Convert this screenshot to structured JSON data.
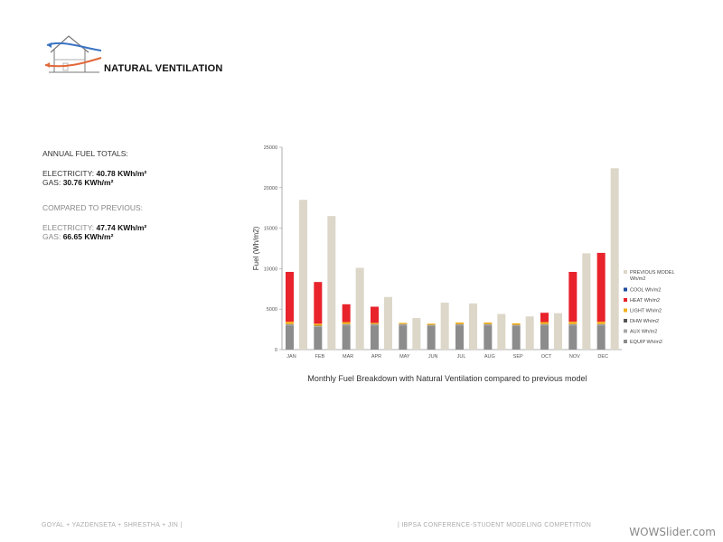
{
  "header": {
    "title": "NATURAL VENTILATION",
    "logo_icon": "house-airflow-icon"
  },
  "totals": {
    "heading": "ANNUAL FUEL TOTALS:",
    "electricity_label": "ELECTRICITY: ",
    "electricity_value": "40.78 KWh/m²",
    "gas_label": "GAS: ",
    "gas_value": "30.76 KWh/m²",
    "compare_heading": "COMPARED TO PREVIOUS:",
    "prev_electricity_label": "ELECTRICITY: ",
    "prev_electricity_value": "47.74 KWh/m²",
    "prev_gas_label": "GAS: ",
    "prev_gas_value": "66.65 KWh/m²"
  },
  "chart_data": {
    "type": "bar",
    "title": "Monthly Fuel Breakdown with Natural Ventilation compared to previous model",
    "ylabel": "Fuel (Wh/m2)",
    "xlabel": "",
    "ylim": [
      0,
      25000
    ],
    "yticks": [
      0,
      5000,
      10000,
      15000,
      20000,
      25000
    ],
    "grid": false,
    "legend_position": "right",
    "categories": [
      "JAN",
      "FEB",
      "MAR",
      "APR",
      "MAY",
      "JUN",
      "JUL",
      "AUG",
      "SEP",
      "OCT",
      "NOV",
      "DEC"
    ],
    "stacked_series": [
      {
        "name": "EQUIP Wh/m2",
        "color": "#8c8c8c",
        "values": [
          3000,
          2800,
          3000,
          3000,
          3000,
          2900,
          3000,
          3000,
          2900,
          3000,
          3000,
          3000
        ]
      },
      {
        "name": "AUX Wh/m2",
        "color": "#a8a8a8",
        "values": [
          100,
          100,
          100,
          100,
          100,
          100,
          100,
          100,
          100,
          100,
          100,
          100
        ]
      },
      {
        "name": "DHW Wh/m2",
        "color": "#555555",
        "values": [
          50,
          50,
          50,
          50,
          50,
          50,
          50,
          50,
          50,
          50,
          50,
          50
        ]
      },
      {
        "name": "LIGHT Wh/m2",
        "color": "#f2b01e",
        "values": [
          300,
          250,
          250,
          150,
          150,
          150,
          200,
          200,
          200,
          250,
          300,
          300
        ]
      },
      {
        "name": "HEAT Wh/m2",
        "color": "#e8232b",
        "values": [
          6150,
          5150,
          2200,
          2000,
          0,
          0,
          0,
          0,
          0,
          1150,
          6150,
          8500
        ]
      },
      {
        "name": "COOL Wh/m2",
        "color": "#1f4e9c",
        "values": [
          0,
          0,
          0,
          0,
          0,
          0,
          0,
          0,
          0,
          0,
          0,
          0
        ]
      }
    ],
    "comparison_series": {
      "name": "PREVIOUS MODEL Wh/m2",
      "color": "#dcd7c8",
      "values": [
        18500,
        16500,
        10100,
        6500,
        3900,
        5800,
        5700,
        4400,
        4100,
        4500,
        11900,
        22400
      ]
    },
    "legend_order": [
      "PREVIOUS MODEL Wh/m2",
      "COOL Wh/m2",
      "HEAT Wh/m2",
      "LIGHT Wh/m2",
      "DHW Wh/m2",
      "AUX Wh/m2",
      "EQUIP Wh/m2"
    ]
  },
  "footer": {
    "authors": "GOYAL + YAZDENSETA + SHRESTHA + JIN |",
    "event": "| IBPSA CONFERENCE-STUDENT MODELING COMPETITION"
  },
  "watermark": "WOWSlider.com"
}
